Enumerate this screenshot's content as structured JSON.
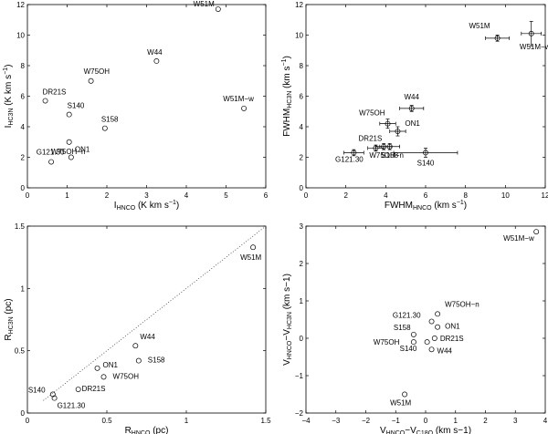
{
  "chart_data": [
    {
      "type": "scatter",
      "xlabel": {
        "main": "I",
        "sub": "HNCO",
        "rest": " (K km s",
        "sup": "−1",
        "end": ")"
      },
      "ylabel": {
        "main": "I",
        "sub": "HC3N",
        "rest": " (K km s",
        "sup": "−1",
        "end": ")"
      },
      "xlim": [
        0,
        6
      ],
      "ylim": [
        0,
        12
      ],
      "xticks": [
        "0",
        "1",
        "2",
        "3",
        "4",
        "5",
        "6"
      ],
      "yticks": [
        "0",
        "2",
        "4",
        "6",
        "8",
        "10",
        "12"
      ],
      "points": [
        {
          "label": "W51M",
          "x": 4.8,
          "y": 11.7
        },
        {
          "label": "W44",
          "x": 3.25,
          "y": 8.3
        },
        {
          "label": "W75OH",
          "x": 1.6,
          "y": 7.0
        },
        {
          "label": "DR21S",
          "x": 0.45,
          "y": 5.7
        },
        {
          "label": "S140",
          "x": 1.05,
          "y": 4.8
        },
        {
          "label": "S158",
          "x": 1.95,
          "y": 3.9
        },
        {
          "label": "W51M−w",
          "x": 5.45,
          "y": 5.2
        },
        {
          "label": "W75OH−n",
          "x": 1.05,
          "y": 3.0
        },
        {
          "label": "ON1",
          "x": 1.1,
          "y": 2.0
        },
        {
          "label": "G121.30",
          "x": 0.6,
          "y": 1.7
        }
      ]
    },
    {
      "type": "scatter",
      "xlabel": {
        "main": "FWHM",
        "sub": "HNCO",
        "rest": " (km s",
        "sup": "−1",
        "end": ")"
      },
      "ylabel": {
        "main": "FWHM",
        "sub": "HC3N",
        "rest": " (km s",
        "sup": "−1",
        "end": ")"
      },
      "xlim": [
        0,
        12
      ],
      "ylim": [
        0,
        12
      ],
      "xticks": [
        "0",
        "2",
        "4",
        "6",
        "8",
        "10",
        "12"
      ],
      "yticks": [
        "0",
        "2",
        "4",
        "6",
        "8",
        "10",
        "12"
      ],
      "points": [
        {
          "label": "W51M",
          "x": 9.6,
          "y": 9.8,
          "xerr": 0.6,
          "yerr": 0.2
        },
        {
          "label": "W51M−w",
          "x": 11.3,
          "y": 10.1,
          "xerr": 0.5,
          "yerr": 0.8
        },
        {
          "label": "W44",
          "x": 5.3,
          "y": 5.2,
          "xerr": 0.6,
          "yerr": 0.2
        },
        {
          "label": "W75OH",
          "x": 4.1,
          "y": 4.2,
          "xerr": 0.4,
          "yerr": 0.3
        },
        {
          "label": "ON1",
          "x": 4.6,
          "y": 3.7,
          "xerr": 0.4,
          "yerr": 0.3
        },
        {
          "label": "S158",
          "x": 4.2,
          "y": 2.7,
          "xerr": 0.5,
          "yerr": 0.2
        },
        {
          "label": "DR21S",
          "x": 3.5,
          "y": 2.6,
          "xerr": 0.4,
          "yerr": 0.2
        },
        {
          "label": "W75OH−n",
          "x": 3.9,
          "y": 2.7,
          "xerr": 0.4,
          "yerr": 0.2
        },
        {
          "label": "G121.30",
          "x": 2.4,
          "y": 2.3,
          "xerr": 0.5,
          "yerr": 0.2
        },
        {
          "label": "S140",
          "x": 6.0,
          "y": 2.3,
          "xerr": 1.6,
          "yerr": 0.3
        }
      ]
    },
    {
      "type": "scatter",
      "xlabel": {
        "main": "R",
        "sub": "HNCO",
        "rest": " (pc)",
        "sup": "",
        "end": ""
      },
      "ylabel": {
        "main": "R",
        "sub": "HC3N",
        "rest": " (pc)",
        "sup": "",
        "end": ""
      },
      "xlim": [
        0,
        1.5
      ],
      "ylim": [
        0,
        1.5
      ],
      "xticks": [
        "0",
        "0.5",
        "1",
        "1.5"
      ],
      "yticks": [
        "0",
        "0.5",
        "1",
        "1.5"
      ],
      "reference_line": {
        "style": "dotted",
        "from": [
          0.1,
          0.1
        ],
        "to": [
          1.5,
          1.5
        ]
      },
      "points": [
        {
          "label": "W51M",
          "x": 1.42,
          "y": 1.33
        },
        {
          "label": "W44",
          "x": 0.68,
          "y": 0.54
        },
        {
          "label": "S158",
          "x": 0.7,
          "y": 0.42
        },
        {
          "label": "ON1",
          "x": 0.44,
          "y": 0.36
        },
        {
          "label": "W75OH",
          "x": 0.48,
          "y": 0.29
        },
        {
          "label": "DR21S",
          "x": 0.32,
          "y": 0.19
        },
        {
          "label": "S140",
          "x": 0.16,
          "y": 0.15
        },
        {
          "label": "G121.30",
          "x": 0.17,
          "y": 0.12
        }
      ]
    },
    {
      "type": "scatter",
      "xlabel": {
        "main": "V",
        "sub": "HNCO",
        "rest": "−V",
        "sub2": "C18O",
        "sup": "",
        "end": " (km s−1)"
      },
      "ylabel": {
        "main": "V",
        "sub": "HNCO",
        "rest": "−V",
        "sub2": "HC3N",
        "sup": "",
        "end": " (km s−1)"
      },
      "xlim": [
        -4,
        4
      ],
      "ylim": [
        -2,
        3
      ],
      "xticks": [
        "−4",
        "−3",
        "−2",
        "−1",
        "0",
        "1",
        "2",
        "3",
        "4"
      ],
      "yticks": [
        "−2",
        "−1",
        "0",
        "1",
        "2",
        "3"
      ],
      "points": [
        {
          "label": "W51M−w",
          "x": 3.7,
          "y": 2.85
        },
        {
          "label": "W75OH−n",
          "x": 0.4,
          "y": 0.65
        },
        {
          "label": "G121.30",
          "x": 0.2,
          "y": 0.45
        },
        {
          "label": "ON1",
          "x": 0.4,
          "y": 0.3
        },
        {
          "label": "S158",
          "x": -0.4,
          "y": 0.1
        },
        {
          "label": "DR21S",
          "x": 0.3,
          "y": 0.0
        },
        {
          "label": "W75OH",
          "x": -0.4,
          "y": -0.1
        },
        {
          "label": "S140",
          "x": 0.05,
          "y": -0.1
        },
        {
          "label": "W44",
          "x": 0.2,
          "y": -0.3
        },
        {
          "label": "W51M",
          "x": -0.7,
          "y": -1.5
        }
      ]
    }
  ]
}
